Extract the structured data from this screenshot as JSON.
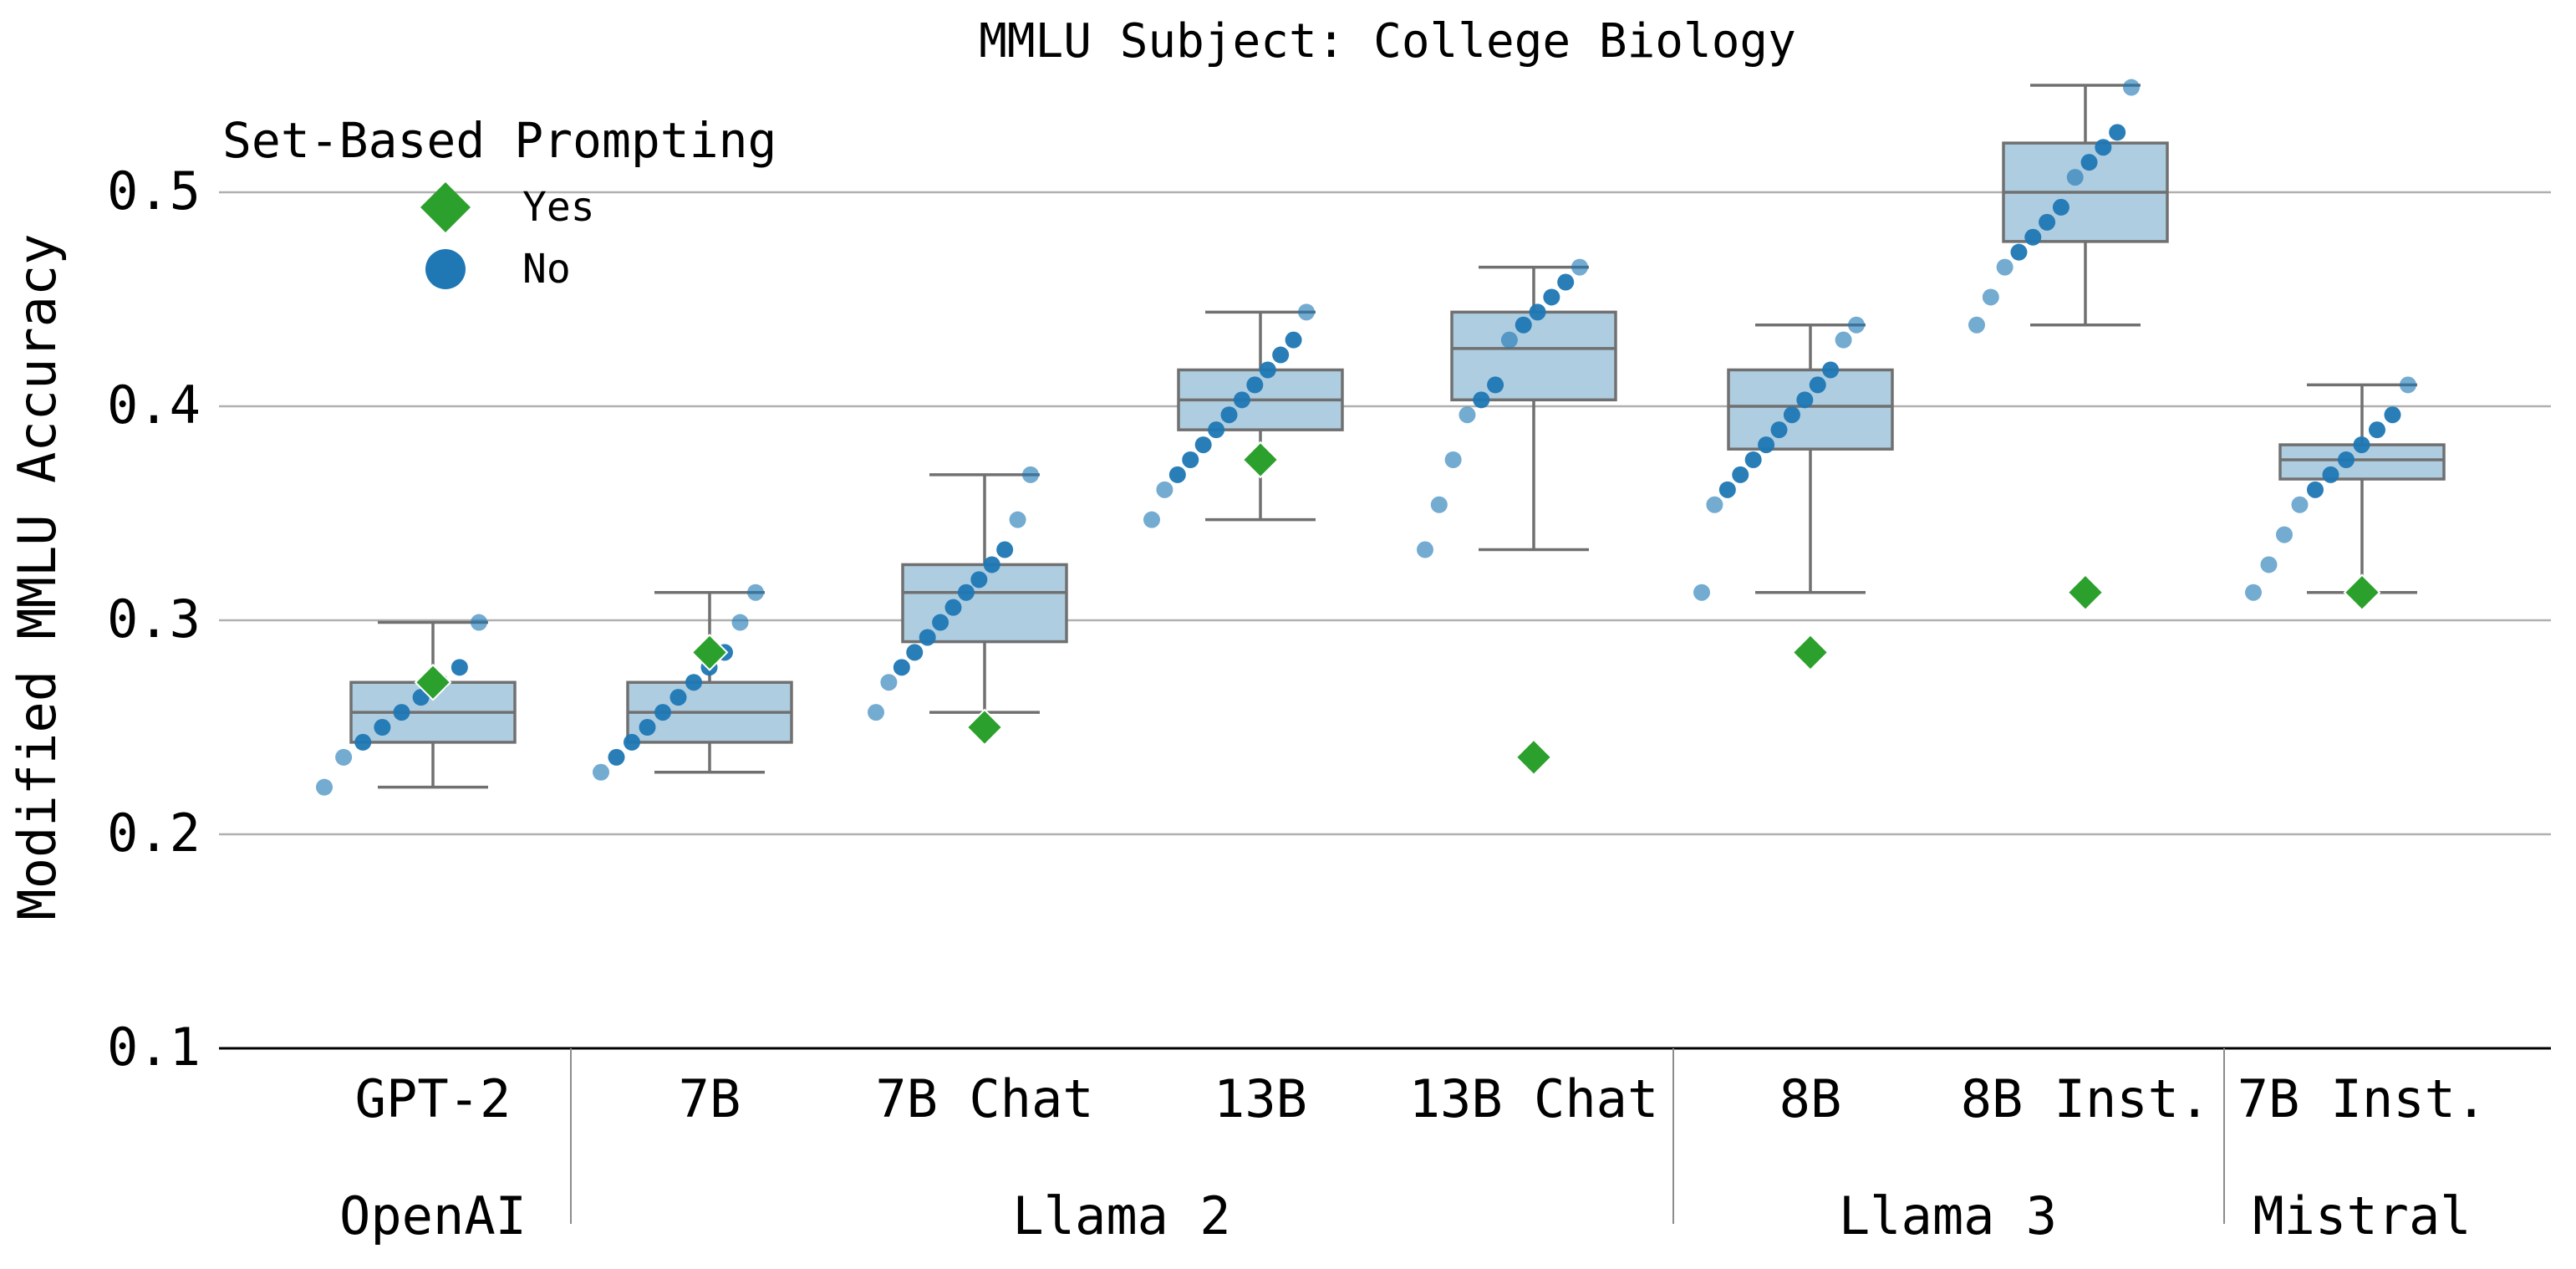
{
  "chart_data": {
    "type": "box",
    "title": "MMLU Subject: College Biology",
    "ylabel": "Modified MMLU Accuracy",
    "ylim": [
      0.1,
      0.55
    ],
    "yticks": [
      0.1,
      0.2,
      0.3,
      0.4,
      0.5
    ],
    "ytick_labels": [
      "0.1",
      "0.2",
      "0.3",
      "0.4",
      "0.5"
    ],
    "grid": "horizontal",
    "legend": {
      "title": "Set-Based Prompting",
      "placement": "top-left",
      "entries": [
        {
          "label": "Yes",
          "marker": "diamond",
          "color": "#2ca02c"
        },
        {
          "label": "No",
          "marker": "circle",
          "color": "#1f77b4"
        }
      ]
    },
    "colors": {
      "box_fill": "#aecde0",
      "box_edge": "#707070",
      "set_based": "#2ca02c",
      "permutations": "#1f77b4",
      "grid": "#b0b0b0"
    },
    "categories": [
      "GPT-2",
      "7B",
      "7B Chat",
      "13B",
      "13B Chat",
      "8B",
      "8B Inst.",
      "7B Inst."
    ],
    "groups": [
      {
        "name": "OpenAI",
        "categories": [
          "GPT-2"
        ]
      },
      {
        "name": "Llama 2",
        "categories": [
          "7B",
          "7B Chat",
          "13B",
          "13B Chat"
        ]
      },
      {
        "name": "Llama 3",
        "categories": [
          "8B",
          "8B Inst."
        ]
      },
      {
        "name": "Mistral",
        "categories": [
          "7B Inst."
        ]
      }
    ],
    "boxes": [
      {
        "category": "GPT-2",
        "whisker_low": 0.222,
        "q1": 0.243,
        "median": 0.257,
        "q3": 0.271,
        "whisker_high": 0.299
      },
      {
        "category": "7B",
        "whisker_low": 0.229,
        "q1": 0.243,
        "median": 0.257,
        "q3": 0.271,
        "whisker_high": 0.313
      },
      {
        "category": "7B Chat",
        "whisker_low": 0.257,
        "q1": 0.29,
        "median": 0.313,
        "q3": 0.326,
        "whisker_high": 0.368
      },
      {
        "category": "13B",
        "whisker_low": 0.347,
        "q1": 0.389,
        "median": 0.403,
        "q3": 0.417,
        "whisker_high": 0.444
      },
      {
        "category": "13B Chat",
        "whisker_low": 0.333,
        "q1": 0.403,
        "median": 0.427,
        "q3": 0.444,
        "whisker_high": 0.465
      },
      {
        "category": "8B",
        "whisker_low": 0.313,
        "q1": 0.38,
        "median": 0.4,
        "q3": 0.417,
        "whisker_high": 0.438
      },
      {
        "category": "8B Inst.",
        "whisker_low": 0.438,
        "q1": 0.477,
        "median": 0.5,
        "q3": 0.523,
        "whisker_high": 0.55
      },
      {
        "category": "7B Inst.",
        "whisker_low": 0.313,
        "q1": 0.366,
        "median": 0.375,
        "q3": 0.382,
        "whisker_high": 0.41
      }
    ],
    "series": [
      {
        "name": "Yes",
        "marker": "diamond",
        "values": [
          0.271,
          0.285,
          0.25,
          0.375,
          0.236,
          0.285,
          0.313,
          0.313
        ]
      },
      {
        "name": "No",
        "marker": "circle",
        "points": [
          [
            0.222,
            0.236,
            0.243,
            0.25,
            0.257,
            0.264,
            0.271,
            0.278,
            0.299
          ],
          [
            0.229,
            0.236,
            0.243,
            0.25,
            0.257,
            0.264,
            0.271,
            0.278,
            0.285,
            0.299,
            0.313
          ],
          [
            0.257,
            0.271,
            0.278,
            0.285,
            0.292,
            0.299,
            0.306,
            0.313,
            0.319,
            0.326,
            0.333,
            0.347,
            0.368
          ],
          [
            0.347,
            0.361,
            0.368,
            0.375,
            0.382,
            0.389,
            0.396,
            0.403,
            0.41,
            0.417,
            0.424,
            0.431,
            0.444
          ],
          [
            0.333,
            0.354,
            0.375,
            0.396,
            0.403,
            0.41,
            0.431,
            0.438,
            0.444,
            0.451,
            0.458,
            0.465
          ],
          [
            0.313,
            0.354,
            0.361,
            0.368,
            0.375,
            0.382,
            0.389,
            0.396,
            0.403,
            0.41,
            0.417,
            0.431,
            0.438
          ],
          [
            0.438,
            0.451,
            0.465,
            0.472,
            0.479,
            0.486,
            0.493,
            0.507,
            0.514,
            0.521,
            0.528,
            0.549
          ],
          [
            0.313,
            0.326,
            0.34,
            0.354,
            0.361,
            0.368,
            0.375,
            0.382,
            0.389,
            0.396,
            0.41
          ]
        ]
      }
    ]
  }
}
